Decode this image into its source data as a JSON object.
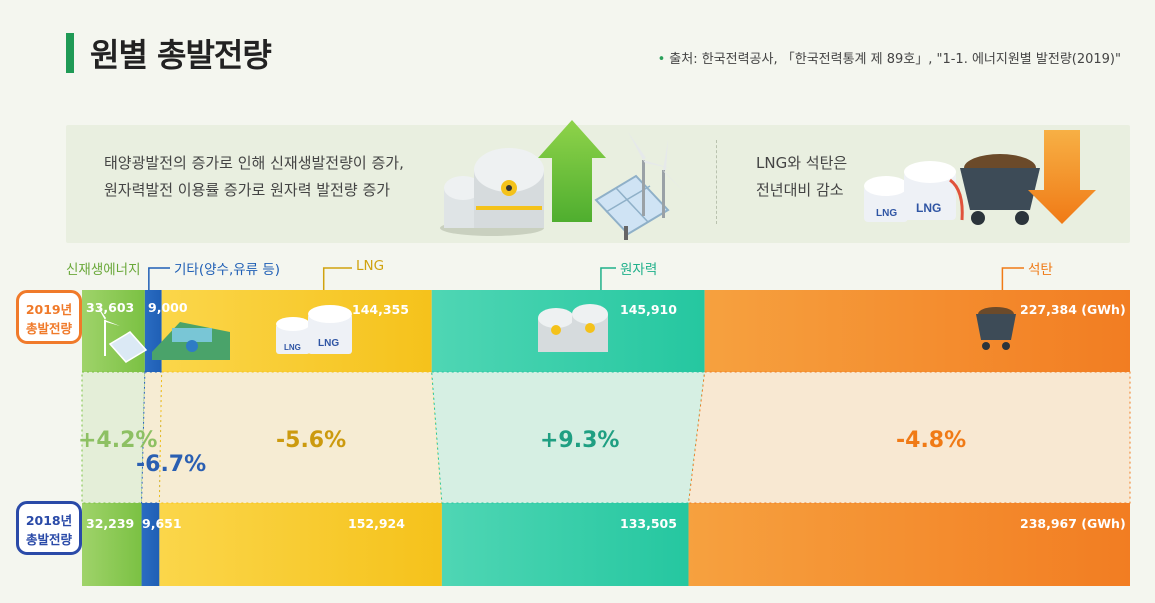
{
  "header": {
    "title": "원별 총발전량",
    "source": "출처: 한국전력공사, 「한국전력통계 제 89호」, \"1-1. 에너지원별 발전량(2019)\""
  },
  "banner": {
    "left_line1": "태양광발전의 증가로 인해 신재생발전량이 증가,",
    "left_line2": "원자력발전 이용률 증가로 원자력 발전량 증가",
    "right_line1": "LNG와 석탄은",
    "right_line2": "전년대비 감소",
    "up_arrow_color": "#6cc13a",
    "down_arrow_color": "#f08a1e",
    "icons": [
      "nuclear-plant-icon",
      "solar-panel-icon",
      "wind-turbine-icon",
      "lng-tank-icon",
      "coal-cart-icon"
    ]
  },
  "categories": {
    "renewable": "신재생에너지",
    "other": "기타(양수,유류 등)",
    "lng": "LNG",
    "nuclear": "원자력",
    "coal": "석탄"
  },
  "years": {
    "y2019_line1": "2019년",
    "y2019_line2": "총발전량",
    "y2018_line1": "2018년",
    "y2018_line2": "총발전량"
  },
  "values_text": {
    "renewable_2019": "33,603",
    "other_2019": "9,000",
    "lng_2019": "144,355",
    "nuclear_2019": "145,910",
    "coal_2019": "227,384 (GWh)",
    "renewable_2018": "32,239",
    "other_2018": "9,651",
    "lng_2018": "152,924",
    "nuclear_2018": "133,505",
    "coal_2018": "238,967 (GWh)"
  },
  "changes": {
    "renewable": "+4.2%",
    "other": "-6.7%",
    "lng": "-5.6%",
    "nuclear": "+9.3%",
    "coal": "-4.8%"
  },
  "chart_data": {
    "type": "bar",
    "unit": "GWh",
    "categories": [
      "신재생에너지",
      "기타(양수,유류 등)",
      "LNG",
      "원자력",
      "석탄"
    ],
    "series": [
      {
        "name": "2019년 총발전량",
        "values": [
          33603,
          9000,
          144355,
          145910,
          227384
        ]
      },
      {
        "name": "2018년 총발전량",
        "values": [
          32239,
          9651,
          152924,
          133505,
          238967
        ]
      }
    ],
    "change_pct": [
      4.2,
      -6.7,
      -5.6,
      9.3,
      -4.8
    ],
    "colors": [
      "#7bc143",
      "#1f5fb5",
      "#f5c21b",
      "#25c7a0",
      "#f27d22"
    ]
  }
}
